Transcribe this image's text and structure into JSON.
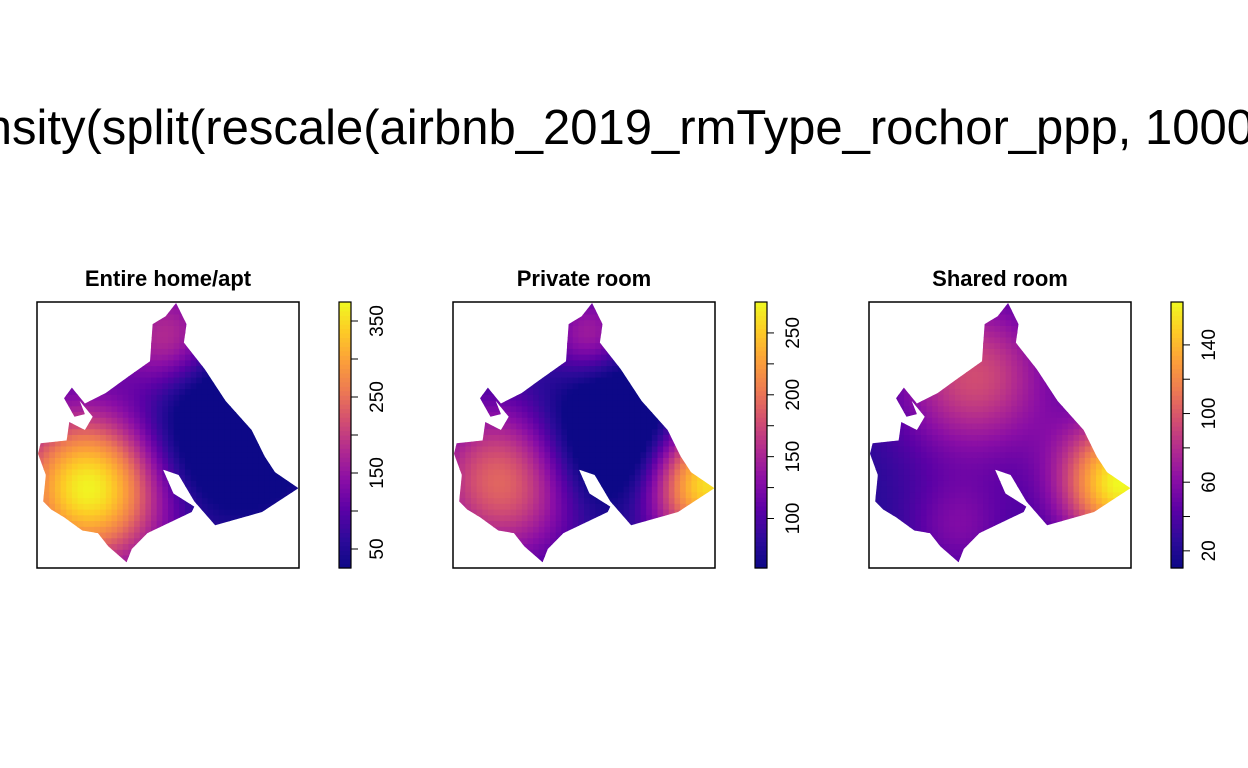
{
  "figure": {
    "title": "nsity(split(rescale(airbnb_2019_rmType_rochor_ppp, 1000"
  },
  "colors": {
    "palette": [
      "#0d0887",
      "#2e0a9a",
      "#5c01a6",
      "#8a0ea6",
      "#b12a90",
      "#d24e71",
      "#ed7953",
      "#fb9f3a",
      "#fdca26",
      "#f0f921"
    ]
  },
  "chart_data": [
    {
      "type": "heatmap",
      "title": "Entire home/apt",
      "colorbar": {
        "range": [
          25,
          375
        ],
        "ticks": [
          50,
          150,
          250,
          350
        ]
      },
      "hotspots": [
        {
          "x": 0.2,
          "y": 0.3,
          "value": 375,
          "sigma": 0.2
        },
        {
          "x": 0.5,
          "y": 0.86,
          "value": 200,
          "sigma": 0.14
        },
        {
          "x": 0.72,
          "y": 0.52,
          "value": -70,
          "sigma": 0.22
        }
      ],
      "base": 75
    },
    {
      "type": "heatmap",
      "title": "Private room",
      "colorbar": {
        "range": [
          60,
          275
        ],
        "ticks": [
          100,
          150,
          200,
          250
        ]
      },
      "hotspots": [
        {
          "x": 0.2,
          "y": 0.33,
          "value": 200,
          "sigma": 0.22
        },
        {
          "x": 0.97,
          "y": 0.32,
          "value": 272,
          "sigma": 0.17
        },
        {
          "x": 0.52,
          "y": 0.88,
          "value": 150,
          "sigma": 0.12
        },
        {
          "x": 0.6,
          "y": 0.48,
          "value": -20,
          "sigma": 0.2
        }
      ],
      "base": 70
    },
    {
      "type": "heatmap",
      "title": "Shared room",
      "colorbar": {
        "range": [
          10,
          165
        ],
        "ticks": [
          20,
          60,
          100,
          140
        ]
      },
      "hotspots": [
        {
          "x": 0.97,
          "y": 0.32,
          "value": 165,
          "sigma": 0.17
        },
        {
          "x": 0.4,
          "y": 0.72,
          "value": 95,
          "sigma": 0.22
        },
        {
          "x": 0.34,
          "y": 0.15,
          "value": 55,
          "sigma": 0.14
        }
      ],
      "base": 22
    }
  ]
}
